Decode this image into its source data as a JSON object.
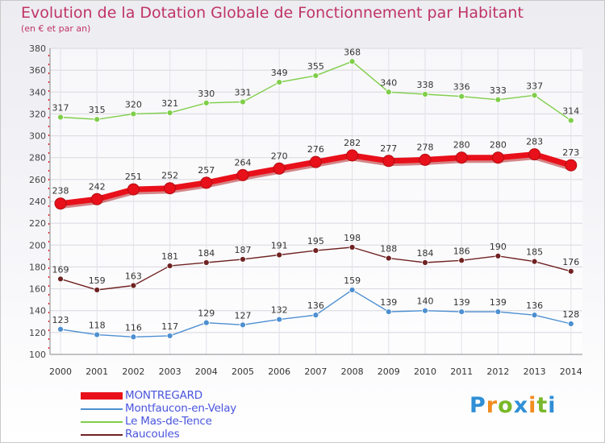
{
  "title": "Evolution de la Dotation Globale de Fonctionnement par Habitant",
  "subtitle": "(en € et par an)",
  "logo": {
    "text": "Proxiti",
    "letters": [
      {
        "char": "P",
        "color": "#2f8fd6"
      },
      {
        "char": "r",
        "color": "#f28c1e"
      },
      {
        "char": "o",
        "color": "#7ab829"
      },
      {
        "char": "x",
        "color": "#2f8fd6"
      },
      {
        "char": "i",
        "color": "#f28c1e"
      },
      {
        "char": "t",
        "color": "#7ab829"
      },
      {
        "char": "i",
        "color": "#2f8fd6"
      }
    ]
  },
  "chart_data": {
    "type": "line",
    "title": "Evolution de la Dotation Globale de Fonctionnement par Habitant",
    "subtitle": "(en € et par an)",
    "categories": [
      "2000",
      "2001",
      "2002",
      "2003",
      "2004",
      "2005",
      "2006",
      "2007",
      "2008",
      "2009",
      "2010",
      "2011",
      "2012",
      "2013",
      "2014"
    ],
    "ylim": [
      100,
      380
    ],
    "yticks": [
      100,
      120,
      140,
      160,
      180,
      200,
      220,
      240,
      260,
      280,
      300,
      320,
      340,
      360,
      380
    ],
    "grid": true,
    "legend_position": "bottom-left",
    "series": [
      {
        "name": "MONTREGARD",
        "color": "#e8101a",
        "highlight": true,
        "values": [
          238,
          242,
          251,
          252,
          257,
          264,
          270,
          276,
          282,
          277,
          278,
          280,
          280,
          283,
          273
        ]
      },
      {
        "name": "Montfaucon-en-Velay",
        "color": "#4d8fd1",
        "highlight": false,
        "values": [
          123,
          118,
          116,
          117,
          129,
          127,
          132,
          136,
          159,
          139,
          140,
          139,
          139,
          136,
          128
        ]
      },
      {
        "name": "Le Mas-de-Tence",
        "color": "#7fce4a",
        "highlight": false,
        "values": [
          317,
          315,
          320,
          321,
          330,
          331,
          349,
          355,
          368,
          340,
          338,
          336,
          333,
          337,
          314
        ]
      },
      {
        "name": "Raucoules",
        "color": "#702222",
        "highlight": false,
        "values": [
          169,
          159,
          163,
          181,
          184,
          187,
          191,
          195,
          198,
          188,
          184,
          186,
          190,
          185,
          176
        ]
      }
    ]
  }
}
